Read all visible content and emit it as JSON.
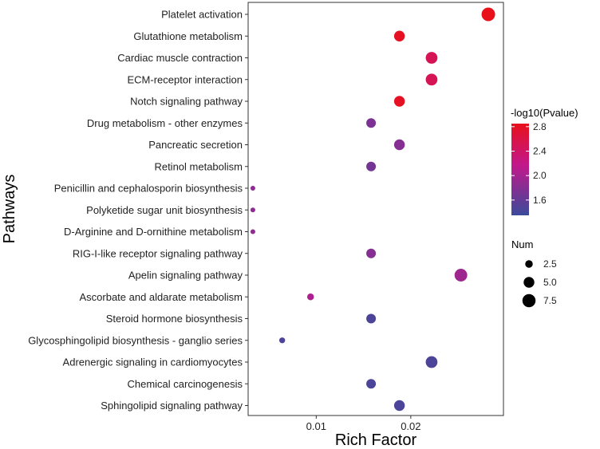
{
  "chart_data": {
    "type": "scatter",
    "title": "",
    "xlabel": "Rich Factor",
    "ylabel": "Pathways",
    "xlim": [
      0.0028,
      0.0298
    ],
    "xticks": [
      0.01,
      0.02
    ],
    "xtick_labels": [
      "0.01",
      "0.02"
    ],
    "grid": false,
    "categories": [
      "Platelet activation",
      "Glutathione metabolism",
      "Cardiac muscle contraction",
      "ECM-receptor interaction",
      "Notch signaling pathway",
      "Drug metabolism - other enzymes",
      "Pancreatic secretion",
      "Retinol metabolism",
      "Penicillin and cephalosporin biosynthesis",
      "Polyketide sugar unit biosynthesis",
      "D-Arginine and D-ornithine metabolism",
      "RIG-I-like receptor signaling pathway",
      "Apelin signaling pathway",
      "Ascorbate and aldarate metabolism",
      "Steroid hormone biosynthesis",
      "Glycosphingolipid biosynthesis - ganglio series",
      "Adrenergic signaling in cardiomyocytes",
      "Chemical carcinogenesis",
      "Sphingolipid signaling pathway"
    ],
    "points": [
      {
        "pathway": "Platelet activation",
        "rich_factor": 0.0282,
        "num": 8,
        "neg_log10_pvalue": 2.85
      },
      {
        "pathway": "Glutathione metabolism",
        "rich_factor": 0.0188,
        "num": 5,
        "neg_log10_pvalue": 2.8
      },
      {
        "pathway": "Cardiac muscle contraction",
        "rich_factor": 0.0222,
        "num": 6,
        "neg_log10_pvalue": 2.5
      },
      {
        "pathway": "ECM-receptor interaction",
        "rich_factor": 0.0222,
        "num": 6,
        "neg_log10_pvalue": 2.5
      },
      {
        "pathway": "Notch signaling pathway",
        "rich_factor": 0.0188,
        "num": 5,
        "neg_log10_pvalue": 2.8
      },
      {
        "pathway": "Drug metabolism - other enzymes",
        "rich_factor": 0.0158,
        "num": 4,
        "neg_log10_pvalue": 1.75
      },
      {
        "pathway": "Pancreatic secretion",
        "rich_factor": 0.0188,
        "num": 5,
        "neg_log10_pvalue": 1.8
      },
      {
        "pathway": "Retinol metabolism",
        "rich_factor": 0.0158,
        "num": 4,
        "neg_log10_pvalue": 1.7
      },
      {
        "pathway": "Penicillin and cephalosporin biosynthesis",
        "rich_factor": 0.0033,
        "num": 1,
        "neg_log10_pvalue": 1.85
      },
      {
        "pathway": "Polyketide sugar unit biosynthesis",
        "rich_factor": 0.0033,
        "num": 1,
        "neg_log10_pvalue": 1.85
      },
      {
        "pathway": "D-Arginine and D-ornithine metabolism",
        "rich_factor": 0.0033,
        "num": 1,
        "neg_log10_pvalue": 1.85
      },
      {
        "pathway": "RIG-I-like receptor signaling pathway",
        "rich_factor": 0.0158,
        "num": 4,
        "neg_log10_pvalue": 1.8
      },
      {
        "pathway": "Apelin signaling pathway",
        "rich_factor": 0.0253,
        "num": 7,
        "neg_log10_pvalue": 1.95
      },
      {
        "pathway": "Ascorbate and aldarate metabolism",
        "rich_factor": 0.0094,
        "num": 2,
        "neg_log10_pvalue": 2.05
      },
      {
        "pathway": "Steroid hormone biosynthesis",
        "rich_factor": 0.0158,
        "num": 4,
        "neg_log10_pvalue": 1.45
      },
      {
        "pathway": "Glycosphingolipid biosynthesis - ganglio series",
        "rich_factor": 0.0064,
        "num": 1.5,
        "neg_log10_pvalue": 1.45
      },
      {
        "pathway": "Adrenergic signaling in cardiomyocytes",
        "rich_factor": 0.0222,
        "num": 6,
        "neg_log10_pvalue": 1.45
      },
      {
        "pathway": "Chemical carcinogenesis",
        "rich_factor": 0.0158,
        "num": 4,
        "neg_log10_pvalue": 1.45
      },
      {
        "pathway": "Sphingolipid signaling pathway",
        "rich_factor": 0.0188,
        "num": 5,
        "neg_log10_pvalue": 1.45
      }
    ],
    "color_legend": {
      "title": "-log10(Pvalue)",
      "min": 1.35,
      "max": 2.85,
      "ticks": [
        1.6,
        2.0,
        2.4,
        2.8
      ],
      "tick_labels": [
        "1.6",
        "2.0",
        "2.4",
        "2.8"
      ],
      "low_color": "#3b4a9a",
      "mid_color": "#c2188b",
      "high_color": "#e8101b",
      "placement": "right"
    },
    "size_legend": {
      "title": "Num",
      "values": [
        2.5,
        5,
        7.5
      ],
      "labels": [
        "2.5",
        "5.0",
        "7.5"
      ],
      "placement": "right"
    }
  }
}
